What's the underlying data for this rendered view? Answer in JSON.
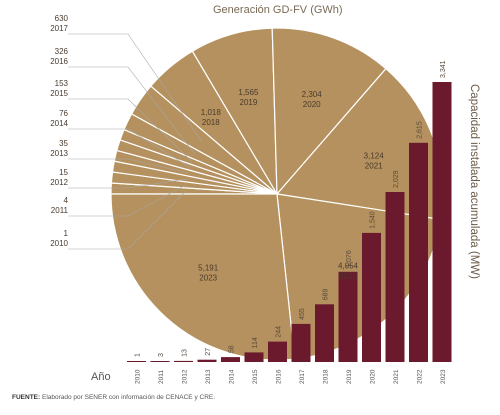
{
  "chart_data": [
    {
      "type": "pie",
      "title": "Generación GD-FV (GWh)",
      "slices": [
        {
          "year": "2010",
          "value": "1"
        },
        {
          "year": "2011",
          "value": "4"
        },
        {
          "year": "2012",
          "value": "15"
        },
        {
          "year": "2013",
          "value": "35"
        },
        {
          "year": "2014",
          "value": "76"
        },
        {
          "year": "2015",
          "value": "153"
        },
        {
          "year": "2016",
          "value": "326"
        },
        {
          "year": "2017",
          "value": "630"
        },
        {
          "year": "2018",
          "value": "1,018"
        },
        {
          "year": "2019",
          "value": "1,565"
        },
        {
          "year": "2020",
          "value": "2,304"
        },
        {
          "year": "2021",
          "value": "3,124"
        },
        {
          "year": "2022",
          "value": "4,054"
        },
        {
          "year": "2023",
          "value": "5,191"
        }
      ],
      "colors": {
        "fill": "#b4915e",
        "stroke": "#ffffff"
      }
    },
    {
      "type": "bar",
      "ylabel": "Capacidad instalada acumulada (MW)",
      "xlabel": "Año",
      "categories": [
        "2010",
        "2011",
        "2012",
        "2013",
        "2014",
        "2015",
        "2016",
        "2017",
        "2018",
        "2019",
        "2020",
        "2021",
        "2022",
        "2023"
      ],
      "values": [
        1,
        3,
        13,
        27,
        58,
        114,
        244,
        455,
        689,
        1076,
        1540,
        2029,
        2615,
        3341
      ],
      "labels": [
        "1",
        "3",
        "13",
        "27",
        "58",
        "114",
        "244",
        "455",
        "689",
        "1,076",
        "1,540",
        "2,029",
        "2,615",
        "3,341"
      ],
      "colors": {
        "bar": "#6b1a2e"
      }
    }
  ],
  "footer": {
    "bold": "FUENTE:",
    "text": " Elaborado por SENER con información de CENACE y CRE."
  }
}
